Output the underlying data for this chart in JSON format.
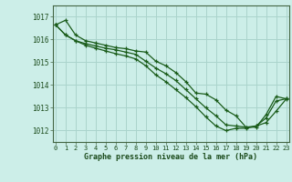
{
  "xlabel": "Graphe pression niveau de la mer (hPa)",
  "background_color": "#cceee8",
  "grid_color": "#aad4cc",
  "line_color": "#1a5c1a",
  "x_ticks": [
    0,
    1,
    2,
    3,
    4,
    5,
    6,
    7,
    8,
    9,
    10,
    11,
    12,
    13,
    14,
    15,
    16,
    17,
    18,
    19,
    20,
    21,
    22,
    23
  ],
  "y_ticks": [
    1012,
    1013,
    1014,
    1015,
    1016,
    1017
  ],
  "ylim": [
    1011.5,
    1017.5
  ],
  "xlim": [
    -0.3,
    23.3
  ],
  "series": [
    {
      "x": [
        0,
        1,
        2,
        3,
        4,
        5,
        6,
        7,
        8,
        9,
        10,
        11,
        12,
        13,
        14,
        15,
        16,
        17,
        18,
        19,
        20,
        21,
        22,
        23
      ],
      "y": [
        1016.65,
        1016.85,
        1016.2,
        1015.95,
        1015.85,
        1015.75,
        1015.65,
        1015.6,
        1015.5,
        1015.45,
        1015.05,
        1014.85,
        1014.55,
        1014.15,
        1013.65,
        1013.6,
        1013.35,
        1012.9,
        1012.65,
        1012.15,
        1012.15,
        1012.7,
        1013.5,
        1013.4
      ]
    },
    {
      "x": [
        0,
        1,
        2,
        3,
        4,
        5,
        6,
        7,
        8,
        9,
        10,
        11,
        12,
        13,
        14,
        15,
        16,
        17,
        18,
        19,
        20,
        21,
        22,
        23
      ],
      "y": [
        1016.65,
        1016.2,
        1015.95,
        1015.82,
        1015.72,
        1015.62,
        1015.55,
        1015.45,
        1015.35,
        1015.05,
        1014.75,
        1014.5,
        1014.2,
        1013.8,
        1013.4,
        1013.0,
        1012.65,
        1012.25,
        1012.2,
        1012.15,
        1012.2,
        1012.55,
        1013.3,
        1013.4
      ]
    },
    {
      "x": [
        0,
        1,
        2,
        3,
        4,
        5,
        6,
        7,
        8,
        9,
        10,
        11,
        12,
        13,
        14,
        15,
        16,
        17,
        18,
        19,
        20,
        21,
        22,
        23
      ],
      "y": [
        1016.65,
        1016.2,
        1015.95,
        1015.75,
        1015.62,
        1015.5,
        1015.38,
        1015.28,
        1015.15,
        1014.85,
        1014.45,
        1014.15,
        1013.8,
        1013.45,
        1013.05,
        1012.6,
        1012.2,
        1012.0,
        1012.1,
        1012.1,
        1012.2,
        1012.35,
        1012.85,
        1013.38
      ]
    }
  ]
}
